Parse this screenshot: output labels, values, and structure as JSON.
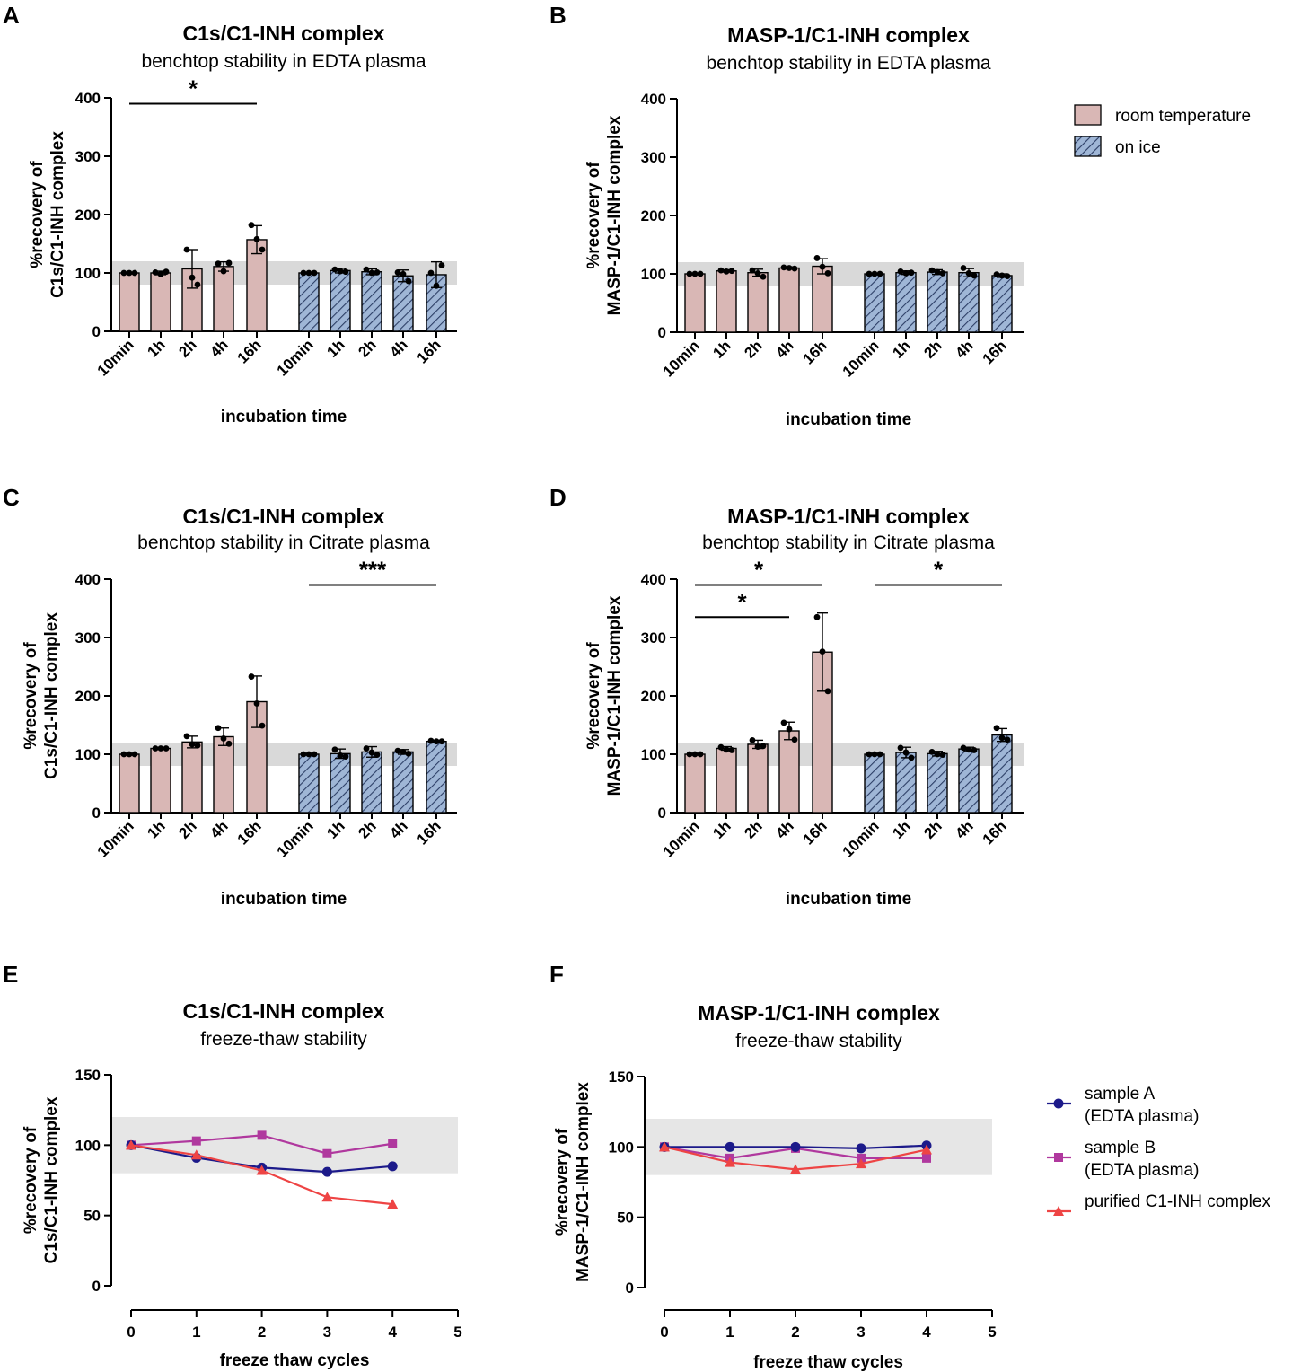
{
  "colors": {
    "room": "#d9b7b5",
    "ice": "#9fb6d6",
    "ice_hatch": "#2c3e66",
    "band": "#d9d9d9",
    "band_light": "#e6e6e6",
    "sampleA": "#1c1a8a",
    "sampleB": "#b0389e",
    "purified": "#ee4444"
  },
  "legend_bar": {
    "items": [
      {
        "label": "room temperature",
        "style": "room"
      },
      {
        "label": "on ice",
        "style": "ice"
      }
    ]
  },
  "legend_line": {
    "items": [
      {
        "label_lines": [
          "sample A",
          "(EDTA plasma)"
        ],
        "color_key": "sampleA",
        "marker": "circle"
      },
      {
        "label_lines": [
          "sample B",
          "(EDTA plasma)"
        ],
        "color_key": "sampleB",
        "marker": "square"
      },
      {
        "label_lines": [
          "purified C1-INH complex"
        ],
        "color_key": "purified",
        "marker": "triangle"
      }
    ]
  },
  "chart_data": [
    {
      "panel": "A",
      "type": "bar",
      "title": "C1s/C1-INH complex",
      "subtitle": "benchtop stability in EDTA plasma",
      "ylabel_lines": [
        "%recovery of",
        "C1s/C1-INH complex"
      ],
      "xlabel": "incubation time",
      "ylim": [
        0,
        400
      ],
      "yticks": [
        0,
        100,
        200,
        300,
        400
      ],
      "acceptance_band": [
        80,
        120
      ],
      "categories": [
        "10min",
        "1h",
        "2h",
        "4h",
        "16h"
      ],
      "series": [
        {
          "name": "room temperature",
          "style": "room",
          "values": [
            100,
            100,
            107,
            111,
            157
          ],
          "errors": [
            0,
            3,
            33,
            8,
            24
          ],
          "points": [
            [
              100,
              100,
              100
            ],
            [
              101,
              98,
              102
            ],
            [
              140,
              92,
              80
            ],
            [
              116,
              103,
              117
            ],
            [
              182,
              158,
              140
            ]
          ]
        },
        {
          "name": "on ice",
          "style": "ice",
          "values": [
            100,
            104,
            102,
            95,
            97
          ],
          "errors": [
            0,
            4,
            5,
            10,
            22
          ],
          "points": [
            [
              100,
              100,
              100
            ],
            [
              106,
              103,
              102
            ],
            [
              106,
              100,
              101
            ],
            [
              101,
              98,
              86
            ],
            [
              100,
              78,
              113
            ]
          ]
        }
      ],
      "significance": [
        {
          "from": [
            0,
            0
          ],
          "to": [
            0,
            4
          ],
          "label": "*",
          "y": 390
        }
      ]
    },
    {
      "panel": "B",
      "type": "bar",
      "title": "MASP-1/C1-INH complex",
      "subtitle": "benchtop stability in EDTA plasma",
      "ylabel_lines": [
        "%recovery of",
        "MASP-1/C1-INH complex"
      ],
      "xlabel": "incubation time",
      "ylim": [
        0,
        400
      ],
      "yticks": [
        0,
        100,
        200,
        300,
        400
      ],
      "acceptance_band": [
        80,
        120
      ],
      "categories": [
        "10min",
        "1h",
        "2h",
        "4h",
        "16h"
      ],
      "series": [
        {
          "name": "room temperature",
          "style": "room",
          "values": [
            100,
            105,
            102,
            110,
            113
          ],
          "errors": [
            0,
            2,
            6,
            2,
            13
          ],
          "points": [
            [
              100,
              100,
              100
            ],
            [
              106,
              104,
              105
            ],
            [
              106,
              101,
              95
            ],
            [
              111,
              110,
              109
            ],
            [
              127,
              112,
              101
            ]
          ]
        },
        {
          "name": "on ice",
          "style": "ice",
          "values": [
            100,
            102,
            103,
            102,
            97
          ],
          "errors": [
            0,
            3,
            4,
            7,
            3
          ],
          "points": [
            [
              100,
              100,
              100
            ],
            [
              104,
              101,
              102
            ],
            [
              106,
              103,
              101
            ],
            [
              110,
              101,
              97
            ],
            [
              99,
              97,
              96
            ]
          ]
        }
      ],
      "significance": []
    },
    {
      "panel": "C",
      "type": "bar",
      "title": "C1s/C1-INH complex",
      "subtitle": "benchtop stability in Citrate plasma",
      "ylabel_lines": [
        "%recovery of",
        "C1s/C1-INH complex"
      ],
      "xlabel": "incubation time",
      "ylim": [
        0,
        400
      ],
      "yticks": [
        0,
        100,
        200,
        300,
        400
      ],
      "acceptance_band": [
        80,
        120
      ],
      "categories": [
        "10min",
        "1h",
        "2h",
        "4h",
        "16h"
      ],
      "series": [
        {
          "name": "room temperature",
          "style": "room",
          "values": [
            100,
            110,
            121,
            130,
            190
          ],
          "errors": [
            0,
            1,
            10,
            15,
            44
          ],
          "points": [
            [
              100,
              100,
              100
            ],
            [
              110,
              110,
              110
            ],
            [
              131,
              117,
              115
            ],
            [
              145,
              127,
              118
            ],
            [
              233,
              187,
              149
            ]
          ]
        },
        {
          "name": "on ice",
          "style": "ice",
          "values": [
            100,
            101,
            104,
            104,
            122
          ],
          "errors": [
            0,
            8,
            9,
            4,
            1
          ],
          "points": [
            [
              100,
              100,
              100
            ],
            [
              108,
              98,
              96
            ],
            [
              110,
              103,
              99
            ],
            [
              106,
              104,
              101
            ],
            [
              123,
              122,
              122
            ]
          ]
        }
      ],
      "significance": [
        {
          "from": [
            1,
            0
          ],
          "to": [
            1,
            4
          ],
          "label": "***",
          "y": 390
        }
      ]
    },
    {
      "panel": "D",
      "type": "bar",
      "title": "MASP-1/C1-INH complex",
      "subtitle": "benchtop stability in Citrate plasma",
      "ylabel_lines": [
        "%recovery of",
        "MASP-1/C1-INH complex"
      ],
      "xlabel": "incubation time",
      "ylim": [
        0,
        400
      ],
      "yticks": [
        0,
        100,
        200,
        300,
        400
      ],
      "acceptance_band": [
        80,
        120
      ],
      "categories": [
        "10min",
        "1h",
        "2h",
        "4h",
        "16h"
      ],
      "series": [
        {
          "name": "room temperature",
          "style": "room",
          "values": [
            100,
            110,
            117,
            140,
            275
          ],
          "errors": [
            0,
            3,
            7,
            15,
            67
          ],
          "points": [
            [
              100,
              100,
              100
            ],
            [
              112,
              108,
              107
            ],
            [
              124,
              113,
              114
            ],
            [
              154,
              143,
              125
            ],
            [
              335,
              276,
              208
            ]
          ]
        },
        {
          "name": "on ice",
          "style": "ice",
          "values": [
            100,
            103,
            101,
            109,
            133
          ],
          "errors": [
            0,
            9,
            4,
            3,
            11
          ],
          "points": [
            [
              100,
              100,
              100
            ],
            [
              111,
              103,
              94
            ],
            [
              104,
              100,
              99
            ],
            [
              111,
              108,
              107
            ],
            [
              145,
              128,
              125
            ]
          ]
        }
      ],
      "significance": [
        {
          "from": [
            0,
            0
          ],
          "to": [
            0,
            4
          ],
          "label": "*",
          "y": 390
        },
        {
          "from": [
            0,
            0
          ],
          "to": [
            0,
            3
          ],
          "label": "*",
          "y": 335
        },
        {
          "from": [
            1,
            0
          ],
          "to": [
            1,
            4
          ],
          "label": "*",
          "y": 390
        }
      ]
    },
    {
      "panel": "E",
      "type": "line",
      "title": "C1s/C1-INH complex",
      "subtitle": "freeze-thaw stability",
      "ylabel_lines": [
        "%recovery of",
        "C1s/C1-INH complex"
      ],
      "xlabel": "freeze thaw cycles",
      "ylim": [
        0,
        150
      ],
      "yticks": [
        0,
        50,
        100,
        150
      ],
      "xlim": [
        0,
        5
      ],
      "xticks": [
        0,
        1,
        2,
        3,
        4,
        5
      ],
      "acceptance_band": [
        80,
        120
      ],
      "x": [
        0,
        1,
        2,
        3,
        4
      ],
      "series": [
        {
          "name": "sample A (EDTA plasma)",
          "color_key": "sampleA",
          "marker": "circle",
          "values": [
            100,
            91,
            84,
            81,
            85
          ]
        },
        {
          "name": "sample B (EDTA plasma)",
          "color_key": "sampleB",
          "marker": "square",
          "values": [
            100,
            103,
            107,
            94,
            101
          ]
        },
        {
          "name": "purified C1-INH complex",
          "color_key": "purified",
          "marker": "triangle",
          "values": [
            100,
            93,
            82,
            63,
            58
          ]
        }
      ]
    },
    {
      "panel": "F",
      "type": "line",
      "title": "MASP-1/C1-INH complex",
      "subtitle": "freeze-thaw stability",
      "ylabel_lines": [
        "%recovery of",
        "MASP-1/C1-INH complex"
      ],
      "xlabel": "freeze thaw cycles",
      "ylim": [
        0,
        150
      ],
      "yticks": [
        0,
        50,
        100,
        150
      ],
      "xlim": [
        0,
        5
      ],
      "xticks": [
        0,
        1,
        2,
        3,
        4,
        5
      ],
      "acceptance_band": [
        80,
        120
      ],
      "x": [
        0,
        1,
        2,
        3,
        4
      ],
      "series": [
        {
          "name": "sample A (EDTA plasma)",
          "color_key": "sampleA",
          "marker": "circle",
          "values": [
            100,
            100,
            100,
            99,
            101
          ]
        },
        {
          "name": "sample B (EDTA plasma)",
          "color_key": "sampleB",
          "marker": "square",
          "values": [
            100,
            92,
            99,
            92,
            92
          ]
        },
        {
          "name": "purified C1-INH complex",
          "color_key": "purified",
          "marker": "triangle",
          "values": [
            100,
            89,
            84,
            88,
            98
          ]
        }
      ]
    }
  ]
}
